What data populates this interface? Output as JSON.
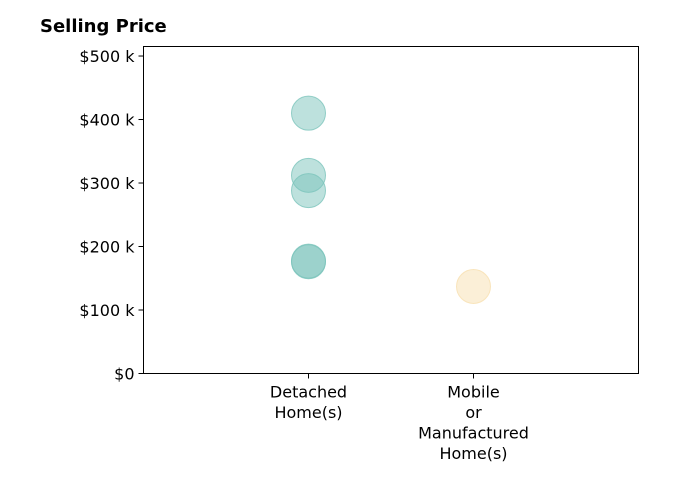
{
  "chart_data": {
    "type": "scatter",
    "title": "Selling Price",
    "xlabel": "",
    "ylabel": "",
    "categories": [
      [
        "Detached",
        "Home(s)"
      ],
      [
        "Mobile",
        "or",
        "Manufactured",
        "Home(s)"
      ]
    ],
    "y_ticks": [
      {
        "value": 0,
        "label": "$0"
      },
      {
        "value": 100000,
        "label": "$100 k"
      },
      {
        "value": 200000,
        "label": "$200 k"
      },
      {
        "value": 300000,
        "label": "$300 k"
      },
      {
        "value": 400000,
        "label": "$400 k"
      },
      {
        "value": 500000,
        "label": "$500 k"
      }
    ],
    "ylim": [
      0,
      515000
    ],
    "xlim": [
      -1,
      2
    ],
    "grid": false,
    "series": [
      {
        "category_index": 0,
        "color": "#7cc4bb",
        "values": [
          410000,
          312000,
          288000,
          177000,
          176000
        ]
      },
      {
        "category_index": 1,
        "color": "#f7e0b0",
        "values": [
          137000
        ]
      }
    ]
  }
}
